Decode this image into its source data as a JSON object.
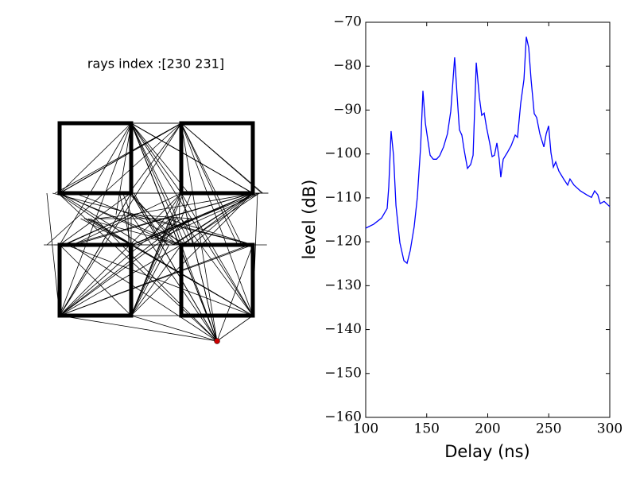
{
  "diagram": {
    "title": "rays index :[230 231]"
  },
  "chart_data": {
    "type": "line",
    "xlabel": "Delay (ns)",
    "ylabel": "level (dB)",
    "xlim": [
      100,
      300
    ],
    "xticks": [
      100,
      150,
      200,
      250,
      300
    ],
    "ylim": [
      -160,
      -70
    ],
    "yticks": [
      {
        "value": -160,
        "label": "−160"
      },
      {
        "value": -150,
        "label": "−150"
      },
      {
        "value": -140,
        "label": "−140"
      },
      {
        "value": -130,
        "label": "−130"
      },
      {
        "value": -120,
        "label": "−120"
      },
      {
        "value": -110,
        "label": "−110"
      },
      {
        "value": -100,
        "label": "−100"
      },
      {
        "value": -90,
        "label": "−90"
      },
      {
        "value": -80,
        "label": "−80"
      },
      {
        "value": -70,
        "label": "−70"
      }
    ],
    "x": [
      100,
      106.5,
      113,
      117.6,
      118.9,
      120.8,
      122.8,
      124.8,
      128,
      131.3,
      133.9,
      136.5,
      139.7,
      142.3,
      145,
      146.9,
      148.9,
      150.8,
      152.8,
      155.4,
      158,
      160.6,
      163.8,
      167,
      169.7,
      172.9,
      174.9,
      176.8,
      178.8,
      180.8,
      183.4,
      186,
      188,
      190.6,
      193.2,
      195.1,
      197.1,
      199,
      201.6,
      203.6,
      205.5,
      207.5,
      209.4,
      210.7,
      212.7,
      216,
      219.2,
      222.5,
      224.4,
      227,
      229.7,
      231.6,
      233.6,
      235.5,
      238.1,
      240.1,
      242.7,
      246,
      247.9,
      249.9,
      251.8,
      253.8,
      255.7,
      258.3,
      262.2,
      265.5,
      267.4,
      270.7,
      275.9,
      281.1,
      285,
      287.6,
      290.2,
      292.2,
      295.4,
      300
    ],
    "series": [
      {
        "color": "#0000ff",
        "values": [
          -116.9,
          -116,
          -114.6,
          -112.4,
          -107.5,
          -94.8,
          -100.3,
          -111.7,
          -120.2,
          -124.3,
          -124.9,
          -122,
          -116.6,
          -109.9,
          -98.4,
          -85.6,
          -93,
          -96.6,
          -100.3,
          -101.2,
          -101.2,
          -100.4,
          -98.4,
          -95.4,
          -90.3,
          -78,
          -86.7,
          -94.5,
          -95.7,
          -99.3,
          -103.3,
          -102.4,
          -100.3,
          -79.2,
          -87.2,
          -91.2,
          -90.7,
          -93.9,
          -97.5,
          -100.6,
          -100.3,
          -97.5,
          -101.2,
          -105.3,
          -101.2,
          -99.7,
          -98.1,
          -95.7,
          -96.2,
          -88.5,
          -83,
          -73.3,
          -75.8,
          -83,
          -90.8,
          -91.7,
          -95.4,
          -98.4,
          -95.4,
          -93.6,
          -99.7,
          -103,
          -101.8,
          -103.9,
          -105.7,
          -107.1,
          -105.7,
          -107.1,
          -108.4,
          -109.3,
          -109.9,
          -108.4,
          -109.3,
          -111.3,
          -110.8,
          -112
        ]
      }
    ]
  }
}
